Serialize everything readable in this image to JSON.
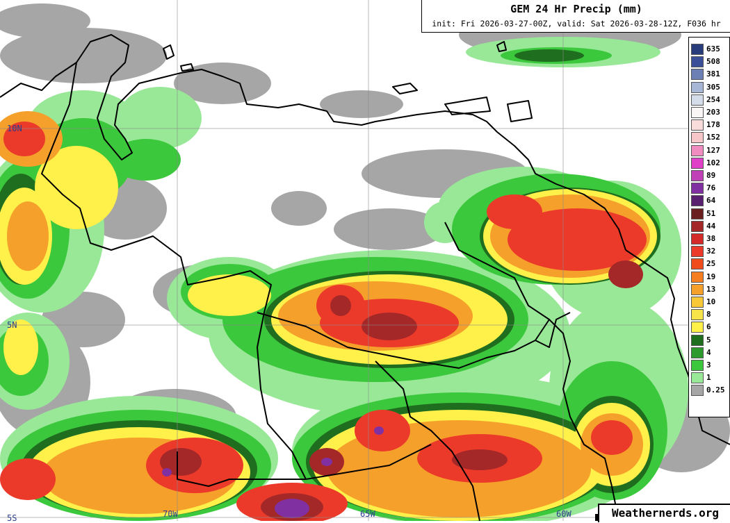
{
  "header": {
    "title": "GEM 24 Hr Precip (mm)",
    "subtitle": "init: Fri 2026-03-27-00Z, valid: Sat 2026-03-28-12Z, F036 hr"
  },
  "legend": {
    "items": [
      {
        "label": "635",
        "color": "#283c7c"
      },
      {
        "label": "508",
        "color": "#3a4f98"
      },
      {
        "label": "381",
        "color": "#6d80b6"
      },
      {
        "label": "305",
        "color": "#a8b6d6"
      },
      {
        "label": "254",
        "color": "#d4dcea"
      },
      {
        "label": "203",
        "color": "#fbf6f6"
      },
      {
        "label": "178",
        "color": "#f8dcdc"
      },
      {
        "label": "152",
        "color": "#f6c6c8"
      },
      {
        "label": "127",
        "color": "#f08cc0"
      },
      {
        "label": "102",
        "color": "#e040c8"
      },
      {
        "label": "89",
        "color": "#c040b8"
      },
      {
        "label": "76",
        "color": "#8030a0"
      },
      {
        "label": "64",
        "color": "#5a2070"
      },
      {
        "label": "51",
        "color": "#6a1e1e"
      },
      {
        "label": "44",
        "color": "#a42828"
      },
      {
        "label": "38",
        "color": "#d42a2a"
      },
      {
        "label": "32",
        "color": "#ec3a2a"
      },
      {
        "label": "25",
        "color": "#f04c1c"
      },
      {
        "label": "19",
        "color": "#f47e20"
      },
      {
        "label": "13",
        "color": "#f6a02c"
      },
      {
        "label": "10",
        "color": "#f8c838"
      },
      {
        "label": "8",
        "color": "#f6e44a"
      },
      {
        "label": "6",
        "color": "#fff04a"
      },
      {
        "label": "5",
        "color": "#1f6e1f"
      },
      {
        "label": "4",
        "color": "#2c9a2c"
      },
      {
        "label": "3",
        "color": "#3cc83c"
      },
      {
        "label": "1",
        "color": "#98e898"
      },
      {
        "label": "0.25",
        "color": "#a6a6a6"
      }
    ]
  },
  "grid": {
    "lat_labels": [
      "10N",
      "5N",
      "5S"
    ],
    "lon_labels": [
      "70W",
      "65W",
      "60W"
    ]
  },
  "credit": "Weathernerds.org"
}
